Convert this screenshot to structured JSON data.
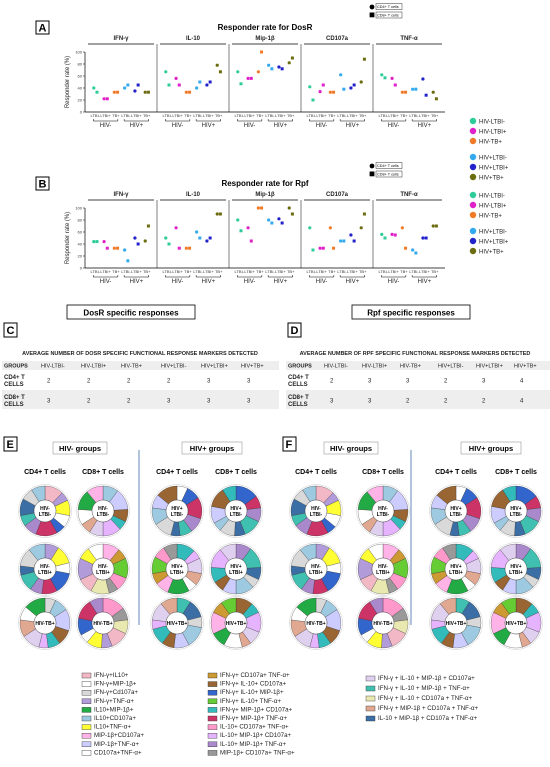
{
  "panels": {
    "a": "A",
    "b": "B",
    "c": "C",
    "d": "D",
    "e": "E",
    "f": "F"
  },
  "colors": {
    "HIV-LTBI-": "#2ecc9a",
    "HIV-LTBI+": "#e020c8",
    "HIV-TB+": "#f07a28",
    "HIV+LTBI-": "#33aaee",
    "HIV+LTBI+": "#2222cc",
    "HIV+TB+": "#6b6b10"
  },
  "cell_legend": [
    "CD4+ T cells",
    "CD8+ T cells"
  ],
  "group_legend": [
    "HIV-LTBI-",
    "HIV-LTBI+",
    "HIV-TB+",
    "HIV+LTBI-",
    "HIV+LTBI+",
    "HIV+TB+"
  ],
  "chart_data": [
    {
      "type": "scatter",
      "title": "Responder rate for DosR",
      "ylabel": "Responder rate (%)",
      "ylim": [
        0,
        100
      ],
      "yticks": [
        "0",
        "20",
        "40",
        "60",
        "80",
        "100"
      ],
      "markers": [
        "IFN-γ",
        "IL-10",
        "Mip-1β",
        "CD107a",
        "TNF-α"
      ],
      "xticks": [
        "LTBI-",
        "LTBI+",
        "TB+",
        "LTBI-",
        "LTBI+",
        "TB+"
      ],
      "groups": [
        "HIV-",
        "HIV+"
      ],
      "series": [
        {
          "name": "HIV-LTBI-",
          "cd4": [
            40,
            67,
            67,
            42,
            62
          ],
          "cd8": [
            33,
            45,
            47,
            20,
            57
          ]
        },
        {
          "name": "HIV-LTBI+",
          "cd4": [
            22,
            56,
            56,
            34,
            56
          ],
          "cd8": [
            22,
            45,
            56,
            45,
            45
          ]
        },
        {
          "name": "HIV-TB+",
          "cd4": [
            33,
            33,
            67,
            33,
            33
          ],
          "cd8": [
            33,
            33,
            100,
            33,
            33
          ]
        },
        {
          "name": "HIV+LTBI-",
          "cd4": [
            40,
            40,
            78,
            62,
            38
          ],
          "cd8": [
            45,
            50,
            72,
            38,
            38
          ]
        },
        {
          "name": "HIV+LTBI+",
          "cd4": [
            35,
            45,
            75,
            40,
            55
          ],
          "cd8": [
            45,
            50,
            72,
            45,
            28
          ]
        },
        {
          "name": "HIV+TB+",
          "cd4": [
            33,
            78,
            82,
            50,
            33
          ],
          "cd8": [
            33,
            67,
            90,
            88,
            22
          ]
        }
      ]
    },
    {
      "type": "scatter",
      "title": "Responder rate for Rpf",
      "ylabel": "Responder rate (%)",
      "ylim": [
        0,
        100
      ],
      "yticks": [
        "0",
        "20",
        "40",
        "60",
        "80",
        "100"
      ],
      "markers": [
        "IFN-γ",
        "IL-10",
        "Mip-1β",
        "CD107a",
        "TNF-α"
      ],
      "xticks": [
        "LTBI-",
        "LTBI+",
        "TB+",
        "LTBI-",
        "LTBI+",
        "TB+"
      ],
      "groups": [
        "HIV-",
        "HIV+"
      ],
      "series": [
        {
          "name": "HIV-LTBI-",
          "cd4": [
            44,
            50,
            80,
            67,
            56
          ],
          "cd8": [
            44,
            40,
            62,
            30,
            50
          ]
        },
        {
          "name": "HIV-LTBI+",
          "cd4": [
            44,
            67,
            67,
            33,
            56
          ],
          "cd8": [
            33,
            33,
            45,
            33,
            55
          ]
        },
        {
          "name": "HIV-TB+",
          "cd4": [
            33,
            33,
            100,
            67,
            67
          ],
          "cd8": [
            33,
            33,
            100,
            33,
            33
          ]
        },
        {
          "name": "HIV+LTBI-",
          "cd4": [
            30,
            60,
            80,
            45,
            30
          ],
          "cd8": [
            12,
            50,
            75,
            45,
            25
          ]
        },
        {
          "name": "HIV+LTBI+",
          "cd4": [
            50,
            45,
            82,
            55,
            50
          ],
          "cd8": [
            40,
            50,
            75,
            45,
            50
          ]
        },
        {
          "name": "HIV+TB+",
          "cd4": [
            45,
            90,
            100,
            67,
            70
          ],
          "cd8": [
            70,
            90,
            90,
            90,
            70
          ]
        }
      ]
    }
  ],
  "table_c": {
    "title": "DosR specific responses",
    "subtitle": "AVERAGE NUMBER OF DOSR SPECIFIC FUNCTIONAL RESPONSE  MARKERS DETECTED",
    "headers": [
      "GROUPS",
      "HIV-LTBI-",
      "HIV-LTBI+",
      "HIV-TB+",
      "HIV+LTBI-",
      "HIV+LTBI+",
      "HIV+TB+"
    ],
    "rows": [
      {
        "label": [
          "CD4+ T",
          "CELLS"
        ],
        "values": [
          "2",
          "2",
          "2",
          "2",
          "3",
          "3"
        ]
      },
      {
        "label": [
          "CD8+ T",
          "CELLS"
        ],
        "values": [
          "3",
          "2",
          "2",
          "3",
          "3",
          "3"
        ]
      }
    ]
  },
  "table_d": {
    "title": "Rpf specific responses",
    "subtitle": "AVERAGE NUMBER OF RPF SPECIFIC FUNCTIONAL RESPONSE  MARKERS DETECTED",
    "headers": [
      "GROUPS",
      "HIV-LTBI-",
      "HIV-LTBI+",
      "HIV-TB+",
      "HIV+LTBI-",
      "HIV+LTBI+",
      "HIV+TB+"
    ],
    "rows": [
      {
        "label": [
          "CD4+ T",
          "CELLS"
        ],
        "values": [
          "2",
          "3",
          "3",
          "2",
          "3",
          "4"
        ]
      },
      {
        "label": [
          "CD8+ T",
          "CELLS"
        ],
        "values": [
          "3",
          "3",
          "2",
          "2",
          "2",
          "4"
        ]
      }
    ]
  },
  "donuts": {
    "hiv_neg_title": "HIV- groups",
    "hiv_pos_title": "HIV+ groups",
    "cd4": "CD4+ T cells",
    "cd8": "CD8+ T cells",
    "neg_centers": [
      [
        "HIV-",
        "LTBI-"
      ],
      [
        "HIV-",
        "LTBI+"
      ],
      [
        "HIV-TB+"
      ]
    ],
    "pos_centers": [
      [
        "HIV+",
        "LTBI-"
      ],
      [
        "HIV+",
        "LTBI+"
      ],
      [
        "HIV+TB+"
      ]
    ]
  },
  "legend_col1": [
    "IFN-γ+IL10+",
    "IFN-γ+MIP-1β+",
    "IFN-γ+Cd107a+",
    "IFN-γ+TNF-α+",
    "IL10+MIP-1β+",
    "IL10+CD107a+",
    "IL10+TNF-α+",
    "MIP-1β+CD107a+",
    "MIP-1β+TNF-α+",
    "CD107a+TNF-α+"
  ],
  "legend_col2": [
    "IFN-γ+ CD107a+ TNF-α+",
    "IFN-γ+ IL-10+ CD107a+",
    "IFN-γ+ IL-10+ MIP-1β+",
    "IFN-γ+ IL-10+ TNF-α+",
    "IFN-γ+ MIP-1β+ CD107a+",
    "IFN-γ+ MIP-1β+ TNF-α+",
    "IL-10+ CD107a+ TNF-α+",
    "IL-10+ MIP-1β+ CD107a+",
    "IL-10+ MIP-1β+ TNF-α+",
    "MIP-1β+ CD107a+ TNF-α+"
  ],
  "legend_col3": [
    "IFN-γ + IL-10 + MIP-1β + CD107a+",
    "IFN-γ + IL-10 + MIP-1β + TNF-α+",
    "IFN-γ + IL-10 + CD107a + TNF-α+",
    "IFN-γ + MIP-1β + CD107a + TNF-α+",
    "IL-10 + MIP-1β + CD107a + TNF-α+"
  ],
  "legend_colors_1": [
    "#f2b8c6",
    "#ffffff",
    "#d9d9d9",
    "#b19cd9",
    "#22aa44",
    "#9ecae1",
    "#ffff33",
    "#ffb3e6",
    "#ccccff",
    "#ffffff"
  ],
  "legend_colors_2": [
    "#cc9933",
    "#996633",
    "#3366cc",
    "#66cc33",
    "#33bbbb",
    "#cc3366",
    "#ff99cc",
    "#e6b3ff",
    "#aa88cc",
    "#999999"
  ],
  "legend_colors_3": [
    "#e0d0f0",
    "#40c0b0",
    "#e8e8b0",
    "#e0a890",
    "#3a6ea5"
  ]
}
